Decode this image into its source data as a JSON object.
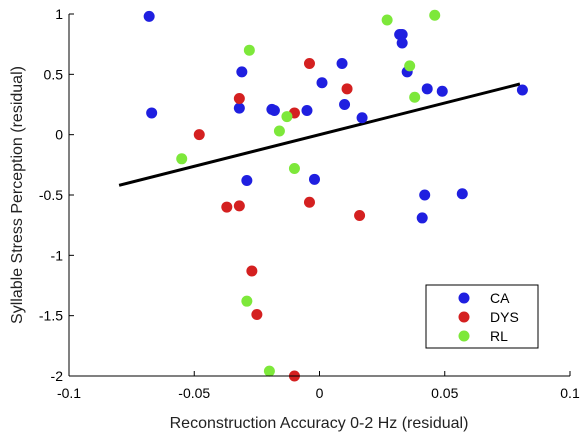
{
  "chart_data": {
    "type": "scatter",
    "title": "",
    "xlabel": "Reconstruction Accuracy 0-2 Hz (residual)",
    "ylabel": "Syllable Stress Perception (residual)",
    "xlim": [
      -0.1,
      0.1
    ],
    "ylim": [
      -2,
      1
    ],
    "xticks": [
      -0.1,
      -0.05,
      0,
      0.05,
      0.1
    ],
    "xtick_labels": [
      "-0.1",
      "-0.05",
      "0",
      "0.05",
      "0.1"
    ],
    "yticks": [
      1,
      0.5,
      0,
      -0.5,
      -1,
      -1.5,
      -2
    ],
    "ytick_labels": [
      "1",
      "0.5",
      "0",
      "-0.5",
      "-1",
      "-1.5",
      "-2"
    ],
    "grid": false,
    "legend_position": "bottom-right",
    "colors": {
      "CA": "#1f1fe0",
      "DYS": "#d42020",
      "RL": "#7de83a",
      "fit": "#000000"
    },
    "fit_line": {
      "x": [
        -0.08,
        0.08
      ],
      "y": [
        -0.42,
        0.42
      ]
    },
    "series": [
      {
        "name": "CA",
        "points": [
          {
            "x": -0.068,
            "y": 0.98
          },
          {
            "x": -0.067,
            "y": 0.18
          },
          {
            "x": -0.031,
            "y": 0.52
          },
          {
            "x": -0.032,
            "y": 0.22
          },
          {
            "x": -0.019,
            "y": 0.21
          },
          {
            "x": -0.018,
            "y": 0.2
          },
          {
            "x": -0.005,
            "y": 0.2
          },
          {
            "x": -0.029,
            "y": -0.38
          },
          {
            "x": -0.002,
            "y": -0.37
          },
          {
            "x": 0.001,
            "y": 0.43
          },
          {
            "x": 0.009,
            "y": 0.59
          },
          {
            "x": 0.01,
            "y": 0.25
          },
          {
            "x": 0.017,
            "y": 0.14
          },
          {
            "x": 0.032,
            "y": 0.83
          },
          {
            "x": 0.033,
            "y": 0.83
          },
          {
            "x": 0.033,
            "y": 0.76
          },
          {
            "x": 0.035,
            "y": 0.52
          },
          {
            "x": 0.043,
            "y": 0.38
          },
          {
            "x": 0.049,
            "y": 0.36
          },
          {
            "x": 0.081,
            "y": 0.37
          },
          {
            "x": 0.042,
            "y": -0.5
          },
          {
            "x": 0.057,
            "y": -0.49
          },
          {
            "x": 0.041,
            "y": -0.69
          }
        ]
      },
      {
        "name": "DYS",
        "points": [
          {
            "x": -0.032,
            "y": 0.3
          },
          {
            "x": -0.048,
            "y": 0.0
          },
          {
            "x": -0.037,
            "y": -0.6
          },
          {
            "x": -0.032,
            "y": -0.59
          },
          {
            "x": -0.004,
            "y": 0.59
          },
          {
            "x": -0.01,
            "y": 0.18
          },
          {
            "x": 0.011,
            "y": 0.38
          },
          {
            "x": -0.004,
            "y": -0.56
          },
          {
            "x": 0.016,
            "y": -0.67
          },
          {
            "x": -0.027,
            "y": -1.13
          },
          {
            "x": -0.025,
            "y": -1.49
          },
          {
            "x": -0.01,
            "y": -2.0
          }
        ]
      },
      {
        "name": "RL",
        "points": [
          {
            "x": -0.028,
            "y": 0.7
          },
          {
            "x": -0.055,
            "y": -0.2
          },
          {
            "x": -0.016,
            "y": 0.03
          },
          {
            "x": -0.013,
            "y": 0.15
          },
          {
            "x": -0.01,
            "y": -0.28
          },
          {
            "x": 0.027,
            "y": 0.95
          },
          {
            "x": 0.046,
            "y": 0.99
          },
          {
            "x": 0.036,
            "y": 0.57
          },
          {
            "x": 0.038,
            "y": 0.31
          },
          {
            "x": -0.029,
            "y": -1.38
          },
          {
            "x": -0.02,
            "y": -1.96
          }
        ]
      }
    ]
  }
}
